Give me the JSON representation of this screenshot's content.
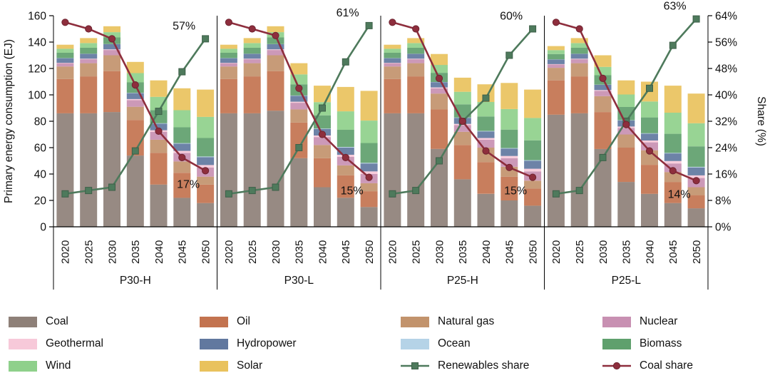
{
  "figure_name": "Primary energy consumption scenarios",
  "chart_data": {
    "type": "bar",
    "subtype": "stacked-bars-with-share-lines",
    "left_axis": {
      "label": "Primary energy consumption (EJ)",
      "min": 0,
      "max": 160,
      "step": 20
    },
    "right_axis": {
      "label": "Share (%)",
      "min": 0,
      "max": 64,
      "step": 8,
      "suffix": "%"
    },
    "years": [
      "2020",
      "2025",
      "2030",
      "2035",
      "2040",
      "2045",
      "2050"
    ],
    "fuels": [
      {
        "name": "Coal",
        "color": "#8e8078"
      },
      {
        "name": "Oil",
        "color": "#c3734f"
      },
      {
        "name": "Natural gas",
        "color": "#c2936c"
      },
      {
        "name": "Nuclear",
        "color": "#c890b2"
      },
      {
        "name": "Geothermal",
        "color": "#f7c9d9"
      },
      {
        "name": "Hydropower",
        "color": "#61789f"
      },
      {
        "name": "Ocean",
        "color": "#b5d3e7"
      },
      {
        "name": "Biomass",
        "color": "#5fa06d"
      },
      {
        "name": "Wind",
        "color": "#8fd08b"
      },
      {
        "name": "Solar",
        "color": "#e9c25d"
      }
    ],
    "lines": [
      {
        "name": "Renewables share",
        "color": "#4e7a5c",
        "marker": "square",
        "key": "renewables_share"
      },
      {
        "name": "Coal share",
        "color": "#8e2e3d",
        "marker": "circle",
        "key": "coal_share"
      }
    ],
    "legend_layout": [
      [
        "Coal",
        "Oil",
        "Natural gas",
        "Nuclear"
      ],
      [
        "Geothermal",
        "Hydropower",
        "Ocean",
        "Biomass"
      ],
      [
        "Wind",
        "Solar",
        "Renewables share",
        "Coal share"
      ]
    ],
    "scenarios": [
      {
        "name": "P30-H",
        "stacks": {
          "Coal": [
            86,
            86,
            87,
            54,
            32,
            22,
            18
          ],
          "Oil": [
            26,
            28,
            31,
            27,
            24,
            19,
            14
          ],
          "Natural gas": [
            9.5,
            10,
            12,
            10,
            10,
            8.5,
            6
          ],
          "Nuclear": [
            2.5,
            3,
            4,
            5,
            6,
            6.5,
            7
          ],
          "Geothermal": [
            0.3,
            0.4,
            0.5,
            0.8,
            1.2,
            1.5,
            1.8
          ],
          "Hydropower": [
            3.5,
            3.7,
            3.9,
            4.5,
            5,
            5.5,
            6
          ],
          "Ocean": [
            0.1,
            0.1,
            0.1,
            0.2,
            0.3,
            0.4,
            0.5
          ],
          "Biomass": [
            4,
            4.5,
            5,
            8,
            10,
            12,
            14
          ],
          "Wind": [
            3,
            3.5,
            4,
            7,
            10,
            13,
            16
          ],
          "Solar": [
            3.1,
            3.8,
            4.5,
            8.5,
            12.5,
            16.6,
            20.7
          ]
        },
        "renewables_share": [
          10,
          11,
          12,
          23,
          35,
          47,
          57
        ],
        "coal_share": [
          62,
          60,
          57,
          43,
          29,
          21,
          17
        ],
        "annotations": {
          "renewables": "57%",
          "coal": "17%"
        }
      },
      {
        "name": "P30-L",
        "stacks": {
          "Coal": [
            86,
            86,
            88,
            52,
            30,
            22,
            15
          ],
          "Oil": [
            26,
            28,
            30,
            27,
            22,
            17,
            12
          ],
          "Natural gas": [
            9.5,
            10,
            12,
            10,
            10,
            7.5,
            6
          ],
          "Nuclear": [
            2.5,
            3,
            4,
            5,
            6,
            6.5,
            7
          ],
          "Geothermal": [
            0.3,
            0.4,
            0.5,
            0.8,
            1.2,
            1.6,
            2
          ],
          "Hydropower": [
            3.5,
            3.7,
            3.9,
            4.5,
            5,
            5.5,
            6
          ],
          "Ocean": [
            0.1,
            0.1,
            0.1,
            0.2,
            0.3,
            0.4,
            0.5
          ],
          "Biomass": [
            4,
            4.5,
            5,
            8.5,
            10,
            13,
            15
          ],
          "Wind": [
            3,
            3.5,
            4,
            7.5,
            10,
            14,
            17
          ],
          "Solar": [
            3.1,
            3.8,
            4.5,
            8.5,
            12.5,
            18.5,
            22.5
          ]
        },
        "renewables_share": [
          10,
          11,
          12,
          24,
          36,
          50,
          61
        ],
        "coal_share": [
          62,
          60,
          58,
          42,
          28,
          21,
          15
        ],
        "annotations": {
          "renewables": "61%",
          "coal": "15%"
        }
      },
      {
        "name": "P25-H",
        "stacks": {
          "Coal": [
            86,
            86,
            59,
            36,
            25,
            20,
            16
          ],
          "Oil": [
            26,
            28,
            30,
            26,
            24,
            18,
            13
          ],
          "Natural gas": [
            9.5,
            10,
            12,
            10,
            11,
            7.5,
            6
          ],
          "Nuclear": [
            2.5,
            3,
            4,
            5,
            6,
            6.5,
            7
          ],
          "Geothermal": [
            0.3,
            0.4,
            0.6,
            1,
            1.3,
            1.7,
            2
          ],
          "Hydropower": [
            3.5,
            3.7,
            4,
            4.6,
            5,
            5.6,
            6
          ],
          "Ocean": [
            0.1,
            0.1,
            0.1,
            0.2,
            0.3,
            0.4,
            0.5
          ],
          "Biomass": [
            4,
            4.5,
            7,
            10,
            11,
            14,
            15
          ],
          "Wind": [
            3,
            3.5,
            6,
            9.5,
            11,
            15.5,
            17
          ],
          "Solar": [
            3.1,
            3.8,
            8.3,
            10.7,
            13.4,
            19.8,
            21.5
          ]
        },
        "renewables_share": [
          10,
          11,
          20,
          32,
          39,
          52,
          60
        ],
        "coal_share": [
          62,
          60,
          45,
          32,
          23,
          18,
          15
        ],
        "annotations": {
          "renewables": "60%",
          "coal": "15%"
        }
      },
      {
        "name": "P25-L",
        "stacks": {
          "Coal": [
            85,
            86,
            59,
            34,
            25,
            18,
            14
          ],
          "Oil": [
            26,
            28,
            28,
            26,
            22,
            16,
            10
          ],
          "Natural gas": [
            9.5,
            10,
            12,
            10,
            11,
            7.5,
            6
          ],
          "Nuclear": [
            2.5,
            3,
            4,
            5,
            6,
            6.5,
            7
          ],
          "Geothermal": [
            0.3,
            0.4,
            0.6,
            1,
            1.4,
            1.8,
            2
          ],
          "Hydropower": [
            3.5,
            3.7,
            4,
            4.6,
            5.2,
            5.8,
            6
          ],
          "Ocean": [
            0.1,
            0.1,
            0.1,
            0.2,
            0.3,
            0.4,
            0.5
          ],
          "Biomass": [
            4,
            4.5,
            7.2,
            10,
            12,
            14.5,
            15.5
          ],
          "Wind": [
            3,
            3.5,
            6.3,
            9.5,
            12.1,
            16,
            17.5
          ],
          "Solar": [
            3.1,
            3.8,
            8.8,
            10.7,
            15,
            20.5,
            22.5
          ]
        },
        "renewables_share": [
          10,
          11,
          21,
          32,
          42,
          55,
          63
        ],
        "coal_share": [
          62,
          60,
          45,
          31,
          23,
          17,
          14
        ],
        "annotations": {
          "renewables": "63%",
          "coal": "14%"
        }
      }
    ]
  }
}
